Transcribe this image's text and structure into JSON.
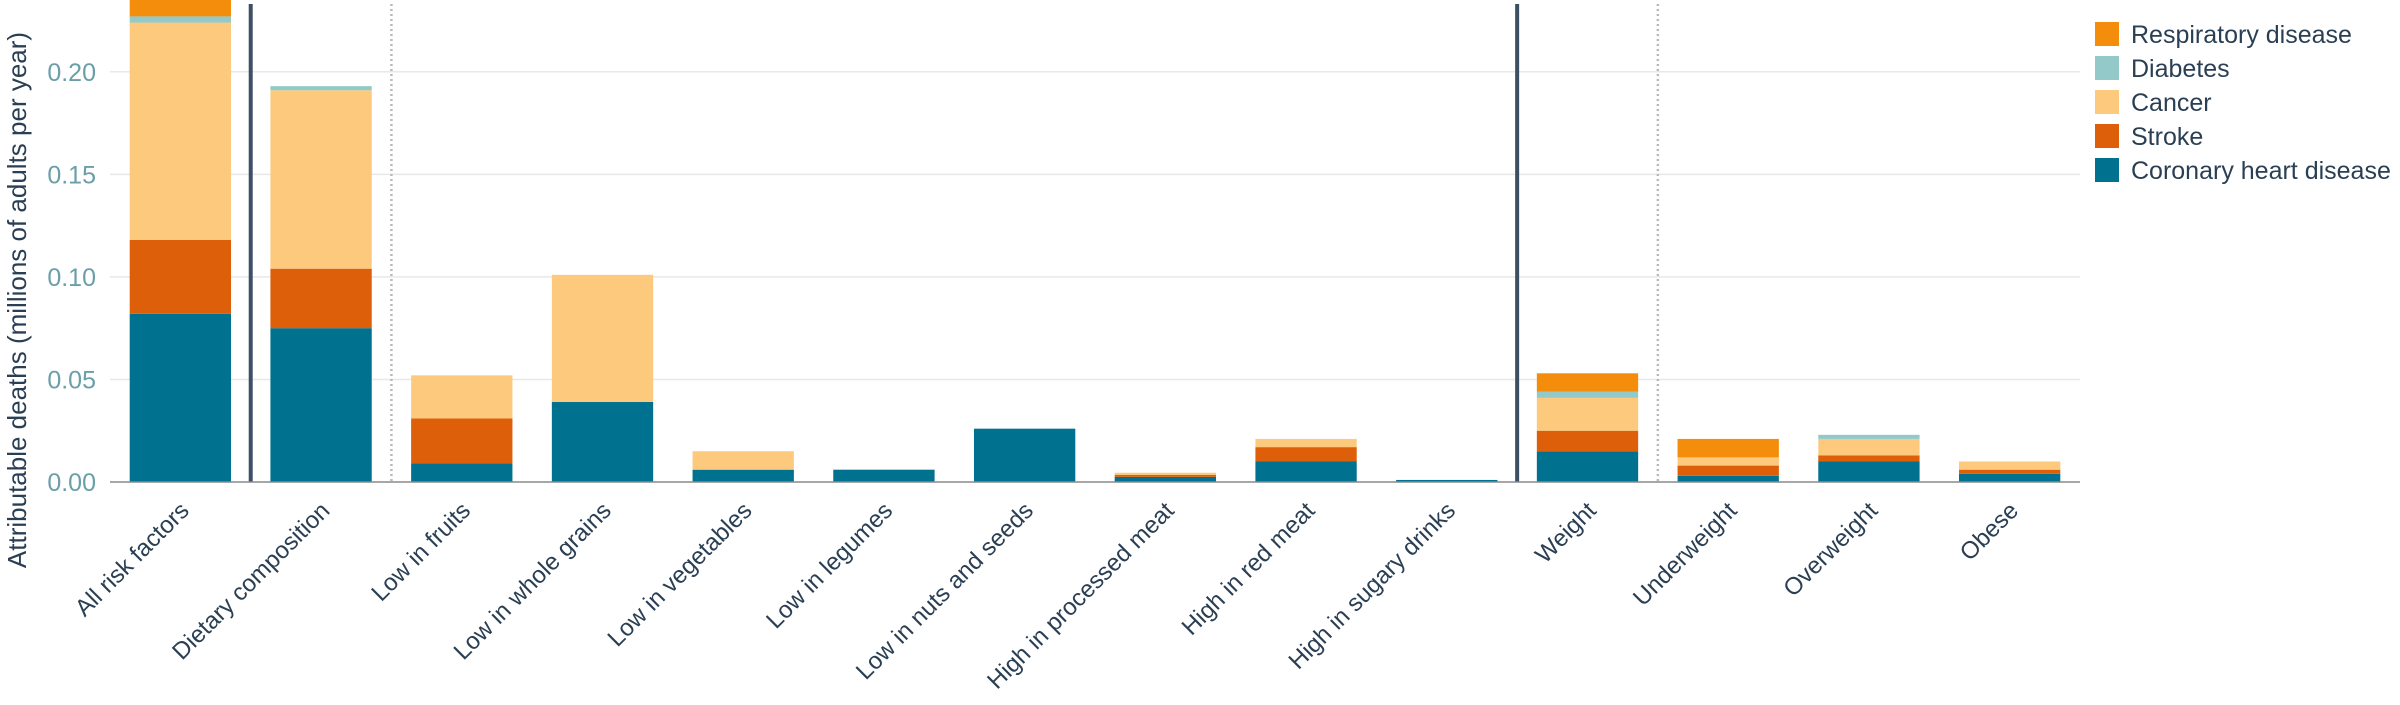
{
  "chart_data": {
    "type": "bar",
    "stacked": true,
    "ylabel": "Attributable deaths (millions of adults per year)",
    "ylim": [
      0,
      0.235
    ],
    "yticks": [
      "0.00",
      "0.05",
      "0.10",
      "0.15",
      "0.20"
    ],
    "ytick_values": [
      0,
      0.05,
      0.1,
      0.15,
      0.2
    ],
    "grid": true,
    "legend_position": "top-right",
    "categories": [
      "All risk factors",
      "Dietary composition",
      "Low in fruits",
      "Low in whole grains",
      "Low in vegetables",
      "Low in legumes",
      "Low in nuts and seeds",
      "High in processed meat",
      "High in red meat",
      "High in sugary drinks",
      "Weight",
      "Underweight",
      "Overweight",
      "Obese"
    ],
    "series": [
      {
        "name": "Coronary heart disease",
        "color": "#00728f",
        "values": [
          0.082,
          0.075,
          0.009,
          0.039,
          0.006,
          0.006,
          0.026,
          0.0025,
          0.01,
          0.001,
          0.015,
          0.003,
          0.01,
          0.004
        ]
      },
      {
        "name": "Stroke",
        "color": "#dd5f0a",
        "values": [
          0.036,
          0.029,
          0.022,
          0.0,
          0.0,
          0.0,
          0.0,
          0.001,
          0.007,
          0.0,
          0.01,
          0.005,
          0.003,
          0.002
        ]
      },
      {
        "name": "Cancer",
        "color": "#fdc97d",
        "values": [
          0.106,
          0.087,
          0.021,
          0.062,
          0.009,
          0.0,
          0.0,
          0.001,
          0.004,
          0.0,
          0.016,
          0.004,
          0.008,
          0.004
        ]
      },
      {
        "name": "Diabetes",
        "color": "#93cac9",
        "values": [
          0.003,
          0.002,
          0.0,
          0.0,
          0.0,
          0.0,
          0.0,
          0.0,
          0.0,
          0.0,
          0.003,
          0.0,
          0.002,
          0.0
        ]
      },
      {
        "name": "Respiratory disease",
        "color": "#f38d0b",
        "values": [
          0.011,
          0.0,
          0.0,
          0.0,
          0.0,
          0.0,
          0.0,
          0.0,
          0.0,
          0.0,
          0.009,
          0.009,
          0.0,
          0.0
        ]
      }
    ],
    "group_separators_after": [
      "All risk factors",
      "Low in fruits|before",
      "High in sugary drinks",
      "Underweight|before"
    ]
  }
}
